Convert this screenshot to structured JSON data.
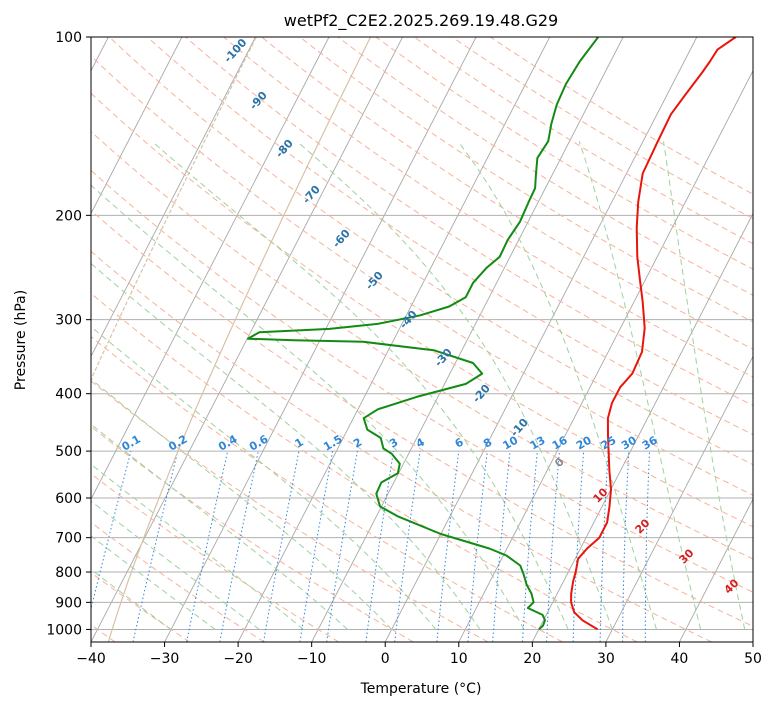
{
  "chart_data": {
    "type": "line",
    "chart_kind": "skew-T log-P diagram",
    "title": "wetPf2_C2E2.2025.269.19.48.G29",
    "xlabel": "Temperature (°C)",
    "ylabel": "Pressure (hPa)",
    "xlim": [
      -40,
      50
    ],
    "ylim": [
      1050,
      100
    ],
    "y_scale": "log",
    "x_ticks": [
      -40,
      -30,
      -20,
      -10,
      0,
      10,
      20,
      30,
      40,
      50
    ],
    "y_ticks": [
      100,
      200,
      300,
      400,
      500,
      600,
      700,
      800,
      900,
      1000
    ],
    "grid": true,
    "series": [
      {
        "role": "temperature",
        "color": "#e8150c",
        "points": [
          [
            28.0,
            1000
          ],
          [
            25.3,
            965
          ],
          [
            23.6,
            935
          ],
          [
            22.5,
            900
          ],
          [
            21.9,
            870
          ],
          [
            21.3,
            830
          ],
          [
            21.0,
            800
          ],
          [
            20.4,
            760
          ],
          [
            20.9,
            730
          ],
          [
            21.8,
            700
          ],
          [
            21.8,
            660
          ],
          [
            21.0,
            620
          ],
          [
            20.0,
            580
          ],
          [
            18.5,
            540
          ],
          [
            17.0,
            500
          ],
          [
            15.8,
            470
          ],
          [
            14.6,
            440
          ],
          [
            14.1,
            415
          ],
          [
            14.1,
            390
          ],
          [
            14.8,
            370
          ],
          [
            14.6,
            340
          ],
          [
            13.3,
            310
          ],
          [
            11.2,
            280
          ],
          [
            9.1,
            255
          ],
          [
            7.3,
            235
          ],
          [
            5.2,
            210
          ],
          [
            3.6,
            190
          ],
          [
            2.2,
            170
          ],
          [
            2.0,
            150
          ],
          [
            1.9,
            135
          ],
          [
            2.5,
            125
          ],
          [
            3.2,
            115
          ],
          [
            3.5,
            110
          ],
          [
            3.7,
            105
          ],
          [
            5.3,
            100
          ]
        ]
      },
      {
        "role": "dewpoint",
        "color": "#138a13",
        "points": [
          [
            20.0,
            1000
          ],
          [
            20.3,
            985
          ],
          [
            20.2,
            965
          ],
          [
            19.5,
            945
          ],
          [
            17.0,
            920
          ],
          [
            17.4,
            900
          ],
          [
            16.5,
            870
          ],
          [
            15.2,
            840
          ],
          [
            14.0,
            805
          ],
          [
            13.0,
            780
          ],
          [
            10.4,
            750
          ],
          [
            7.6,
            730
          ],
          [
            0.0,
            690
          ],
          [
            -7.0,
            645
          ],
          [
            -10.2,
            620
          ],
          [
            -11.6,
            590
          ],
          [
            -11.7,
            565
          ],
          [
            -10.1,
            545
          ],
          [
            -10.5,
            525
          ],
          [
            -12.3,
            505
          ],
          [
            -13.8,
            495
          ],
          [
            -14.9,
            475
          ],
          [
            -17.3,
            460
          ],
          [
            -18.6,
            440
          ],
          [
            -17.3,
            425
          ],
          [
            -12.9,
            405
          ],
          [
            -7.1,
            385
          ],
          [
            -5.6,
            370
          ],
          [
            -7.6,
            355
          ],
          [
            -13.7,
            338
          ],
          [
            -24.0,
            327
          ],
          [
            -33.5,
            325
          ],
          [
            -39.9,
            323
          ],
          [
            -38.8,
            315
          ],
          [
            -29.5,
            311
          ],
          [
            -23.3,
            305
          ],
          [
            -18.1,
            295
          ],
          [
            -14.8,
            285
          ],
          [
            -13.2,
            275
          ],
          [
            -13.2,
            260
          ],
          [
            -12.4,
            245
          ],
          [
            -11.4,
            235
          ],
          [
            -11.5,
            220
          ],
          [
            -11.1,
            205
          ],
          [
            -11.3,
            190
          ],
          [
            -11.4,
            180
          ],
          [
            -12.3,
            170
          ],
          [
            -13.2,
            160
          ],
          [
            -12.9,
            150
          ],
          [
            -13.7,
            140
          ],
          [
            -14.3,
            130
          ],
          [
            -14.5,
            120
          ],
          [
            -14.2,
            110
          ],
          [
            -13.4,
            100
          ]
        ]
      }
    ],
    "mixing_ratio_labels": [
      "0.1",
      "0.2",
      "0.4",
      "0.6",
      "1",
      "1.5",
      "2",
      "3",
      "4",
      "6",
      "8",
      "10",
      "13",
      "16",
      "20",
      "25",
      "30",
      "36"
    ],
    "mixing_ratio_values": [
      0.1,
      0.2,
      0.4,
      0.6,
      1,
      1.5,
      2,
      3,
      4,
      6,
      8,
      10,
      13,
      16,
      20,
      25,
      30,
      36
    ],
    "dry_adiabat_labels": [
      "-100",
      "-90",
      "-80",
      "-70",
      "-60",
      "-50",
      "-40",
      "-30",
      "-20",
      "-10"
    ],
    "dry_adiabat_values": [
      -100,
      -90,
      -80,
      -70,
      -60,
      -50,
      -40,
      -30,
      -20,
      -10
    ],
    "moist_adiabat_labels": [
      "0",
      "10",
      "20",
      "30",
      "40"
    ],
    "moist_adiabat_values": [
      0,
      10,
      20,
      30,
      40
    ],
    "colors": {
      "isotherm": "#a8a8a8",
      "isobar": "#b0b0b0",
      "dry_adiabat": "#f7b299",
      "moist_adiabat": "#9fd19f",
      "mixing_ratio": "#2f86d8",
      "dry_label": "#2a73a8",
      "moist_label": "#d42020",
      "zero_label": "#8a8a8a",
      "curve": "#d9c2a5"
    }
  }
}
